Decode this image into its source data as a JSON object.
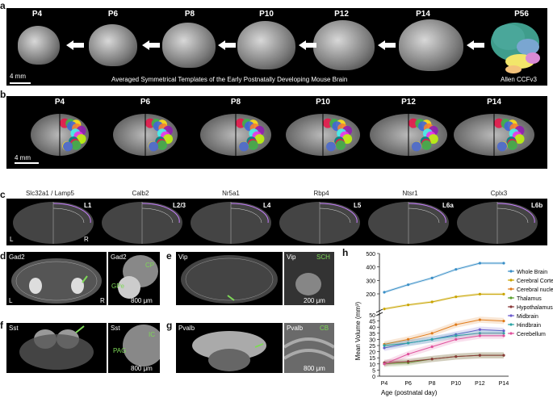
{
  "panel_letters": {
    "a": "a",
    "b": "b",
    "c": "c",
    "d": "d",
    "e": "e",
    "f": "f",
    "g": "g",
    "h": "h"
  },
  "panel_a": {
    "ages": [
      "P4",
      "P6",
      "P8",
      "P10",
      "P12",
      "P14",
      "P56"
    ],
    "scale_bar": "4 mm",
    "caption": "Averaged Symmetrical Templates of the Early Postnatally Developing Mouse Brain",
    "atlas_label": "Allen CCFv3"
  },
  "panel_b": {
    "ages": [
      "P4",
      "P6",
      "P8",
      "P10",
      "P12",
      "P14"
    ],
    "scale_bar": "4 mm"
  },
  "panel_c": {
    "genes": [
      "Slc32a1 / Lamp5",
      "Calb2",
      "Nr5a1",
      "Rbp4",
      "Ntsr1",
      "Cplx3"
    ],
    "layers": [
      "L1",
      "L2/3",
      "L4",
      "L5",
      "L6a",
      "L6b"
    ],
    "left_label": "L",
    "right_label": "R"
  },
  "panel_d": {
    "gene": "Gad2",
    "gene2": "Gad2",
    "cp": "CP",
    "gpe": "GPe",
    "left": "L",
    "right": "R",
    "scale": "800 μm"
  },
  "panel_e": {
    "gene": "Vip",
    "gene2": "Vip",
    "sch": "SCH",
    "scale": "200 μm"
  },
  "panel_f": {
    "gene": "Sst",
    "gene2": "Sst",
    "ic": "IC",
    "pag": "PAG",
    "scale": "800 μm"
  },
  "panel_g": {
    "gene": "Pvalb",
    "gene2": "Pvalb",
    "cb": "CB",
    "scale": "800 μm"
  },
  "chart_data": {
    "type": "line",
    "x": [
      "P4",
      "P6",
      "P8",
      "P10",
      "P12",
      "P14"
    ],
    "xlabel": "Age (postnatal day)",
    "ylabel": "Mean Volume (mm³)",
    "yticks_upper": [
      200,
      300,
      400,
      500
    ],
    "yticks_lower": [
      0,
      5,
      10,
      15,
      20,
      25,
      30,
      35,
      40,
      45,
      50
    ],
    "series": [
      {
        "name": "Whole Brain",
        "color": "#3a8fc7",
        "values": [
          212,
          268,
          318,
          382,
          428,
          428
        ]
      },
      {
        "name": "Cerebral Cortex",
        "color": "#c9a400",
        "values": [
          88,
          118,
          140,
          178,
          198,
          198
        ]
      },
      {
        "name": "Cerebral nuclei",
        "color": "#e07b1a",
        "values": [
          26,
          30,
          35,
          42,
          46,
          45
        ]
      },
      {
        "name": "Thalamus",
        "color": "#5aa02c",
        "values": [
          10,
          11,
          14,
          16,
          17,
          17
        ]
      },
      {
        "name": "Hypothalamus",
        "color": "#8b3a3a",
        "values": [
          11,
          12,
          14,
          16,
          17,
          17
        ]
      },
      {
        "name": "Midbrain",
        "color": "#6a5acd",
        "values": [
          23,
          27,
          30,
          34,
          38,
          37
        ]
      },
      {
        "name": "Hindbrain",
        "color": "#2ca5a5",
        "values": [
          25,
          27,
          30,
          33,
          35,
          35
        ]
      },
      {
        "name": "Cerebellum",
        "color": "#e0509c",
        "values": [
          10,
          18,
          24,
          30,
          33,
          33
        ]
      }
    ]
  }
}
